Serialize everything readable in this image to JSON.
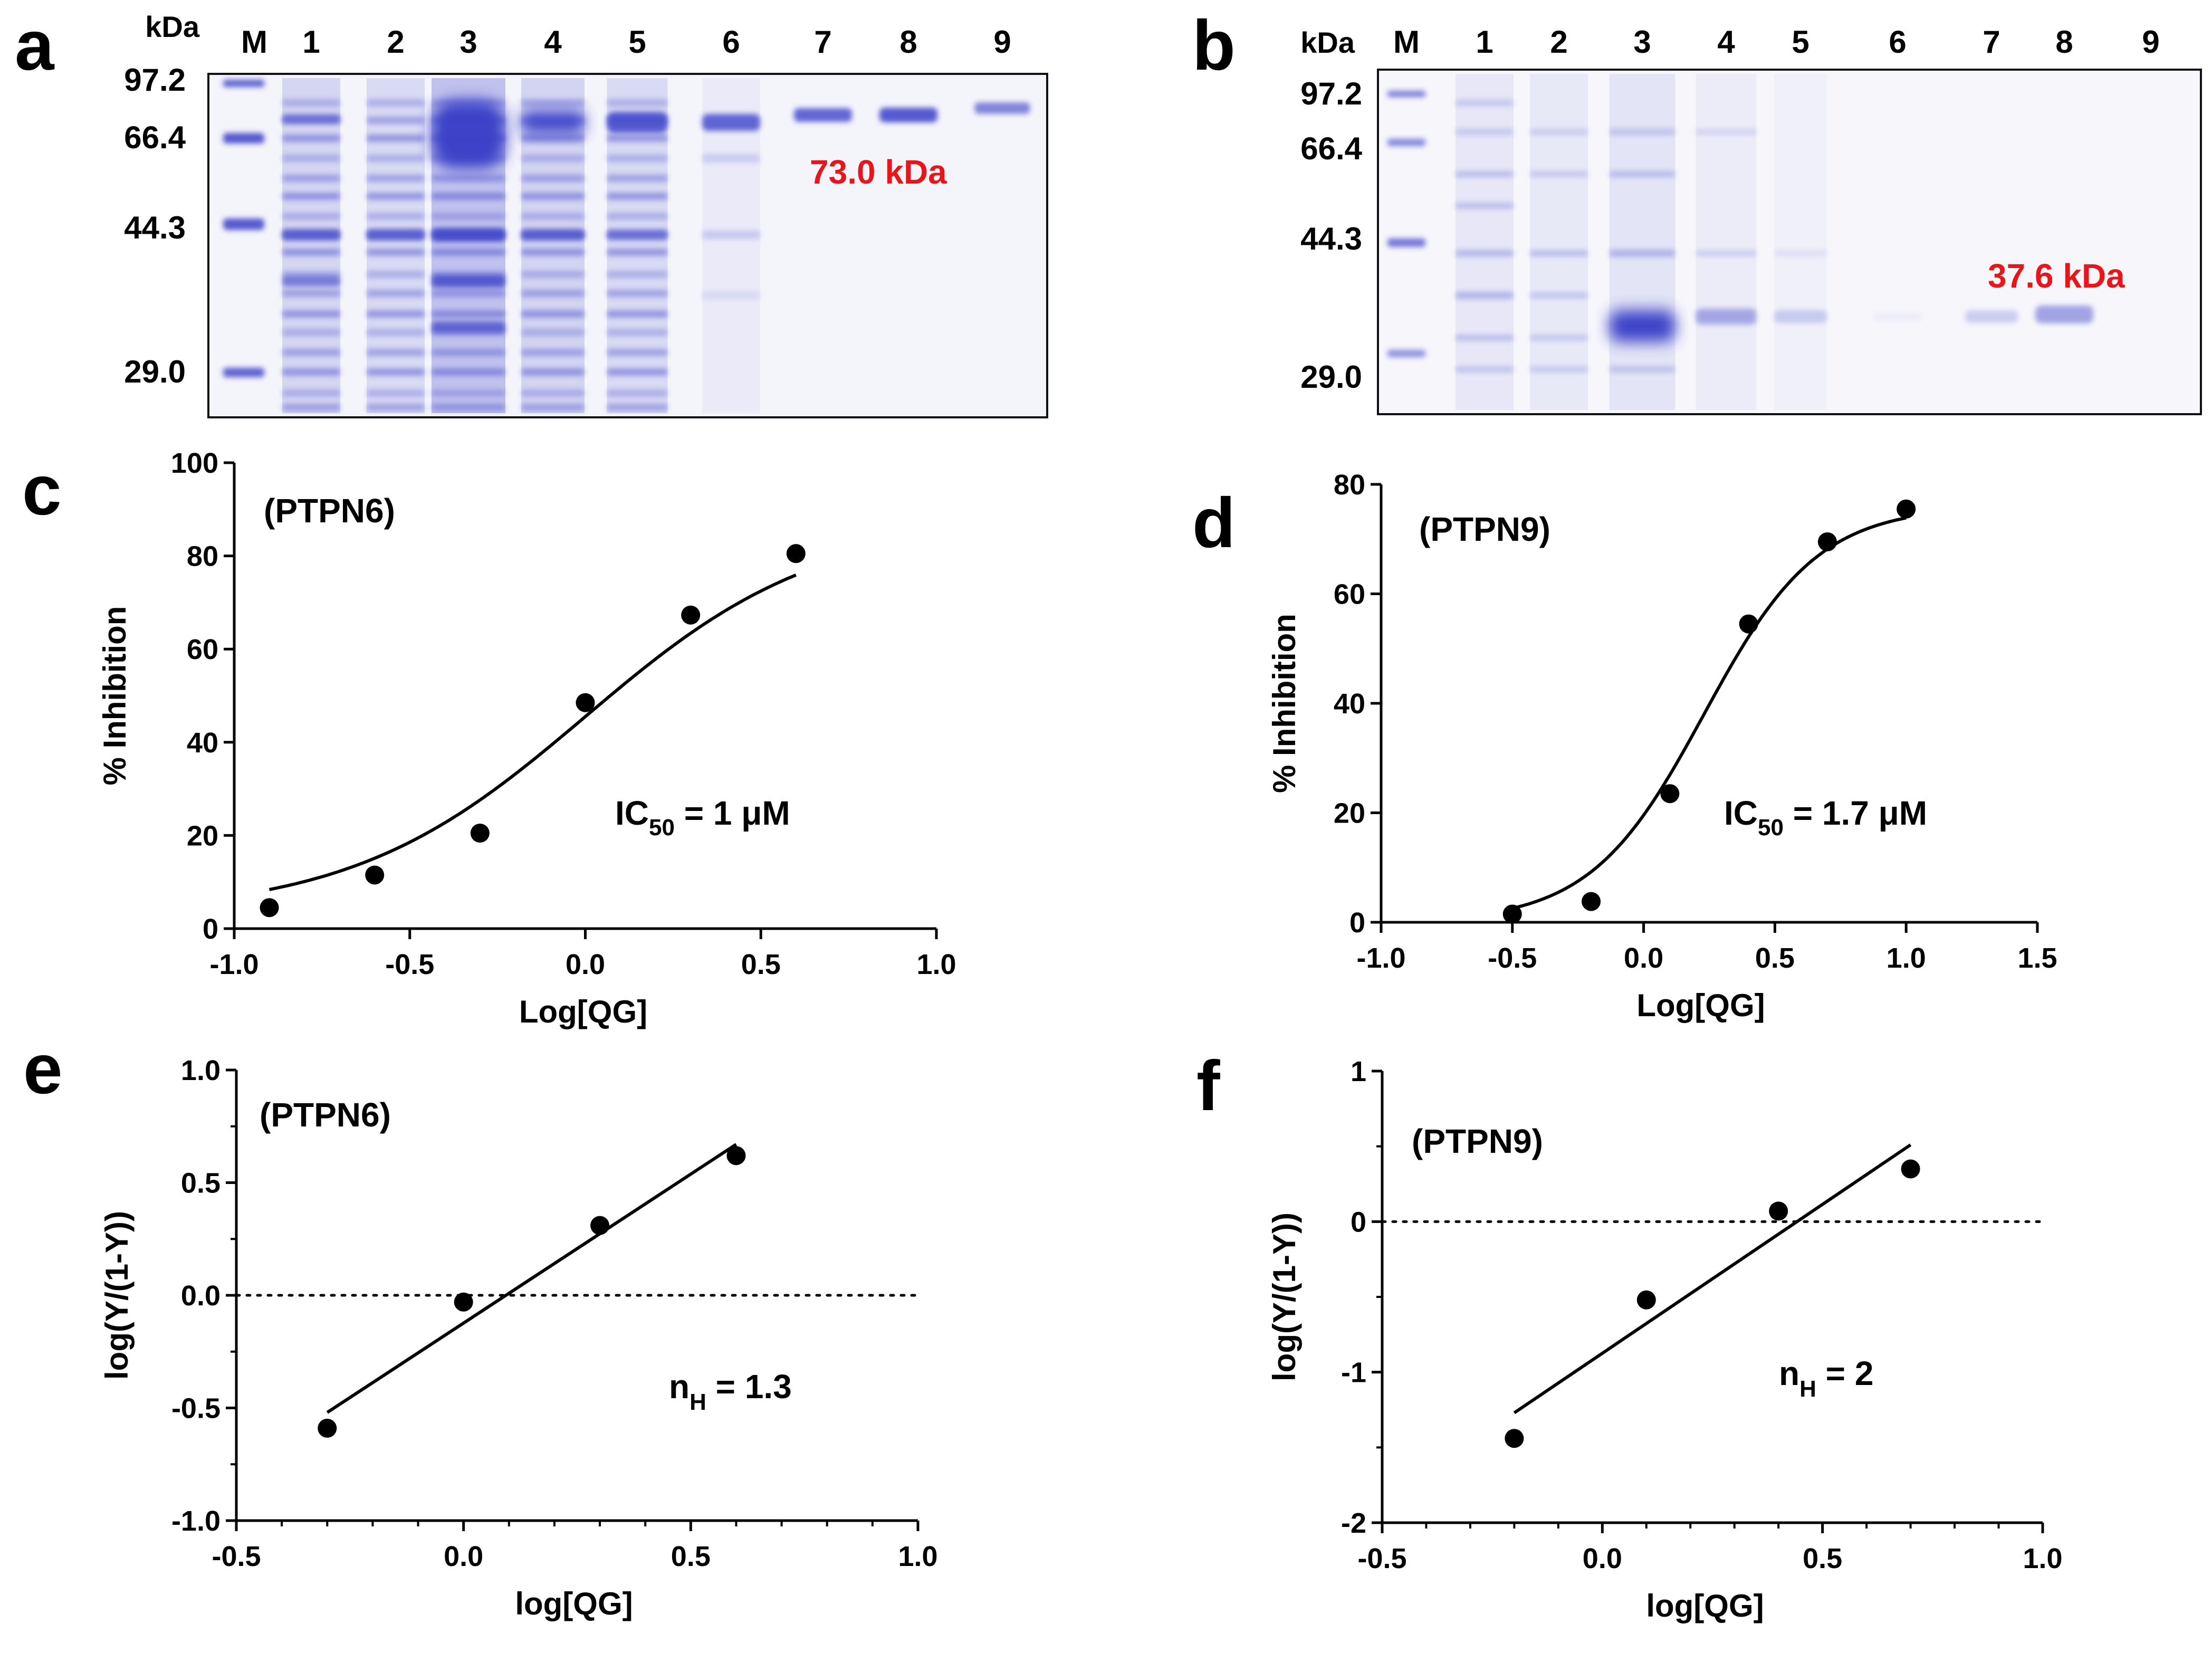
{
  "panels": {
    "a": {
      "label": "a",
      "kda_label": "kDa",
      "lanes": [
        "M",
        "1",
        "2",
        "3",
        "4",
        "5",
        "6",
        "7",
        "8",
        "9"
      ],
      "markers": [
        "97.2",
        "66.4",
        "44.3",
        "29.0"
      ],
      "band_annotation": "73.0 kDa"
    },
    "b": {
      "label": "b",
      "kda_label": "kDa",
      "lanes": [
        "M",
        "1",
        "2",
        "3",
        "4",
        "5",
        "6",
        "7",
        "8",
        "9"
      ],
      "markers": [
        "97.2",
        "66.4",
        "44.3",
        "29.0"
      ],
      "band_annotation": "37.6 kDa"
    },
    "c": {
      "label": "c",
      "title": "(PTPN6)",
      "annotation_main": "IC",
      "annotation_sub": "50",
      "annotation_tail": " = 1 μM"
    },
    "d": {
      "label": "d",
      "title": "(PTPN9)",
      "annotation_main": "IC",
      "annotation_sub": "50",
      "annotation_tail": " = 1.7 μM"
    },
    "e": {
      "label": "e",
      "title": "(PTPN6)",
      "annotation_main": "n",
      "annotation_sub": "H",
      "annotation_tail": " = 1.3"
    },
    "f": {
      "label": "f",
      "title": "(PTPN9)",
      "annotation_main": "n",
      "annotation_sub": "H",
      "annotation_tail": " = 2"
    }
  },
  "colors": {
    "gel_stain": "#3b40c8",
    "gel_background": "#f4f4fb",
    "annotation_red": "#e8161b",
    "ink": "#000000"
  },
  "chart_data": [
    {
      "id": "c",
      "type": "scatter",
      "title": "(PTPN6)",
      "xlabel": "Log[QG]",
      "ylabel": "% Inhibition",
      "xlim": [
        -1.0,
        1.0
      ],
      "ylim": [
        0,
        100
      ],
      "xticks": [
        "-1.0",
        "-0.5",
        "0.0",
        "0.5",
        "1.0"
      ],
      "yticks": [
        "0",
        "20",
        "40",
        "60",
        "80",
        "100"
      ],
      "x": [
        -0.9,
        -0.6,
        -0.3,
        0.0,
        0.3,
        0.6
      ],
      "y": [
        4.5,
        11.5,
        20.5,
        48.5,
        67.3,
        80.5
      ],
      "fit": {
        "model": "sigmoidal dose-response",
        "bottom": 3,
        "top": 88,
        "logIC50": 0.0,
        "hill": 1.3,
        "x_range": [
          -0.9,
          0.6
        ]
      }
    },
    {
      "id": "d",
      "type": "scatter",
      "title": "(PTPN9)",
      "xlabel": "Log[QG]",
      "ylabel": "% Inhibition",
      "xlim": [
        -1.0,
        1.5
      ],
      "ylim": [
        0,
        80
      ],
      "xticks": [
        "-1.0",
        "-0.5",
        "0.0",
        "0.5",
        "1.0",
        "1.5"
      ],
      "yticks": [
        "0",
        "20",
        "40",
        "60",
        "80"
      ],
      "x": [
        -0.5,
        -0.2,
        0.1,
        0.4,
        0.7,
        1.0
      ],
      "y": [
        1.5,
        3.8,
        23.5,
        54.5,
        69.5,
        75.5
      ],
      "fit": {
        "model": "sigmoidal dose-response",
        "bottom": 0,
        "top": 76,
        "logIC50": 0.23,
        "hill": 2.0,
        "x_range": [
          -0.5,
          1.0
        ]
      }
    },
    {
      "id": "e",
      "type": "scatter",
      "title": "(PTPN6)",
      "xlabel": "log[QG]",
      "ylabel": "log(Y/(1-Y))",
      "xlim": [
        -0.5,
        1.0
      ],
      "ylim": [
        -1.0,
        1.0
      ],
      "xticks": [
        "-0.5",
        "0.0",
        "0.5",
        "1.0"
      ],
      "yticks": [
        "-1.0",
        "-0.5",
        "0.0",
        "0.5",
        "1.0"
      ],
      "x": [
        -0.3,
        0.0,
        0.3,
        0.6
      ],
      "y": [
        -0.59,
        -0.03,
        0.31,
        0.62
      ],
      "fit": {
        "model": "linear",
        "x_range": [
          -0.3,
          0.6
        ],
        "y_range": [
          -0.52,
          0.67
        ]
      },
      "reference_line_y": 0
    },
    {
      "id": "f",
      "type": "scatter",
      "title": "(PTPN9)",
      "xlabel": "log[QG]",
      "ylabel": "log(Y/(1-Y))",
      "xlim": [
        -0.5,
        1.0
      ],
      "ylim": [
        -2,
        1
      ],
      "xticks": [
        "-0.5",
        "0.0",
        "0.5",
        "1.0"
      ],
      "yticks": [
        "-2",
        "-1",
        "0",
        "1"
      ],
      "x": [
        -0.2,
        0.1,
        0.4,
        0.7
      ],
      "y": [
        -1.44,
        -0.52,
        0.07,
        0.35
      ],
      "fit": {
        "model": "linear",
        "x_range": [
          -0.2,
          0.7
        ],
        "y_range": [
          -1.27,
          0.51
        ]
      },
      "reference_line_y": 0
    }
  ]
}
